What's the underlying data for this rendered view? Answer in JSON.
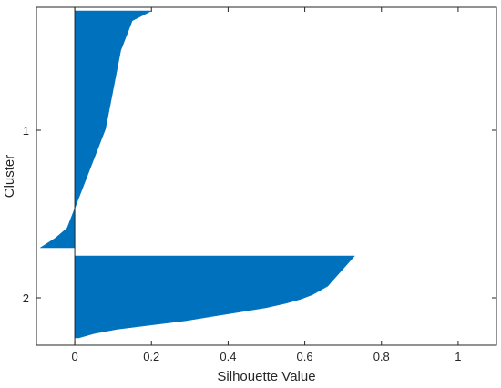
{
  "chart_data": {
    "type": "area",
    "subtype": "silhouette",
    "xlabel": "Silhouette Value",
    "ylabel": "Cluster",
    "xlim": [
      -0.1,
      1.1
    ],
    "xticks": [
      "0",
      "0.2",
      "0.4",
      "0.6",
      "0.8",
      "1"
    ],
    "xtick_values": [
      0,
      0.2,
      0.4,
      0.6,
      0.8,
      1
    ],
    "color": "#0072bd",
    "grid": false,
    "clusters": [
      {
        "label": "1",
        "sorted_silhouette_values": [
          0.2,
          0.15,
          0.14,
          0.13,
          0.12,
          0.115,
          0.11,
          0.105,
          0.1,
          0.095,
          0.09,
          0.085,
          0.08,
          0.07,
          0.06,
          0.05,
          0.04,
          0.03,
          0.02,
          0.01,
          0.0,
          -0.01,
          -0.02,
          -0.05,
          -0.09
        ]
      },
      {
        "label": "2",
        "sorted_silhouette_values": [
          0.73,
          0.72,
          0.71,
          0.7,
          0.69,
          0.68,
          0.67,
          0.66,
          0.64,
          0.62,
          0.59,
          0.55,
          0.5,
          0.43,
          0.36,
          0.29,
          0.2,
          0.11,
          0.05,
          0.01
        ]
      }
    ]
  }
}
